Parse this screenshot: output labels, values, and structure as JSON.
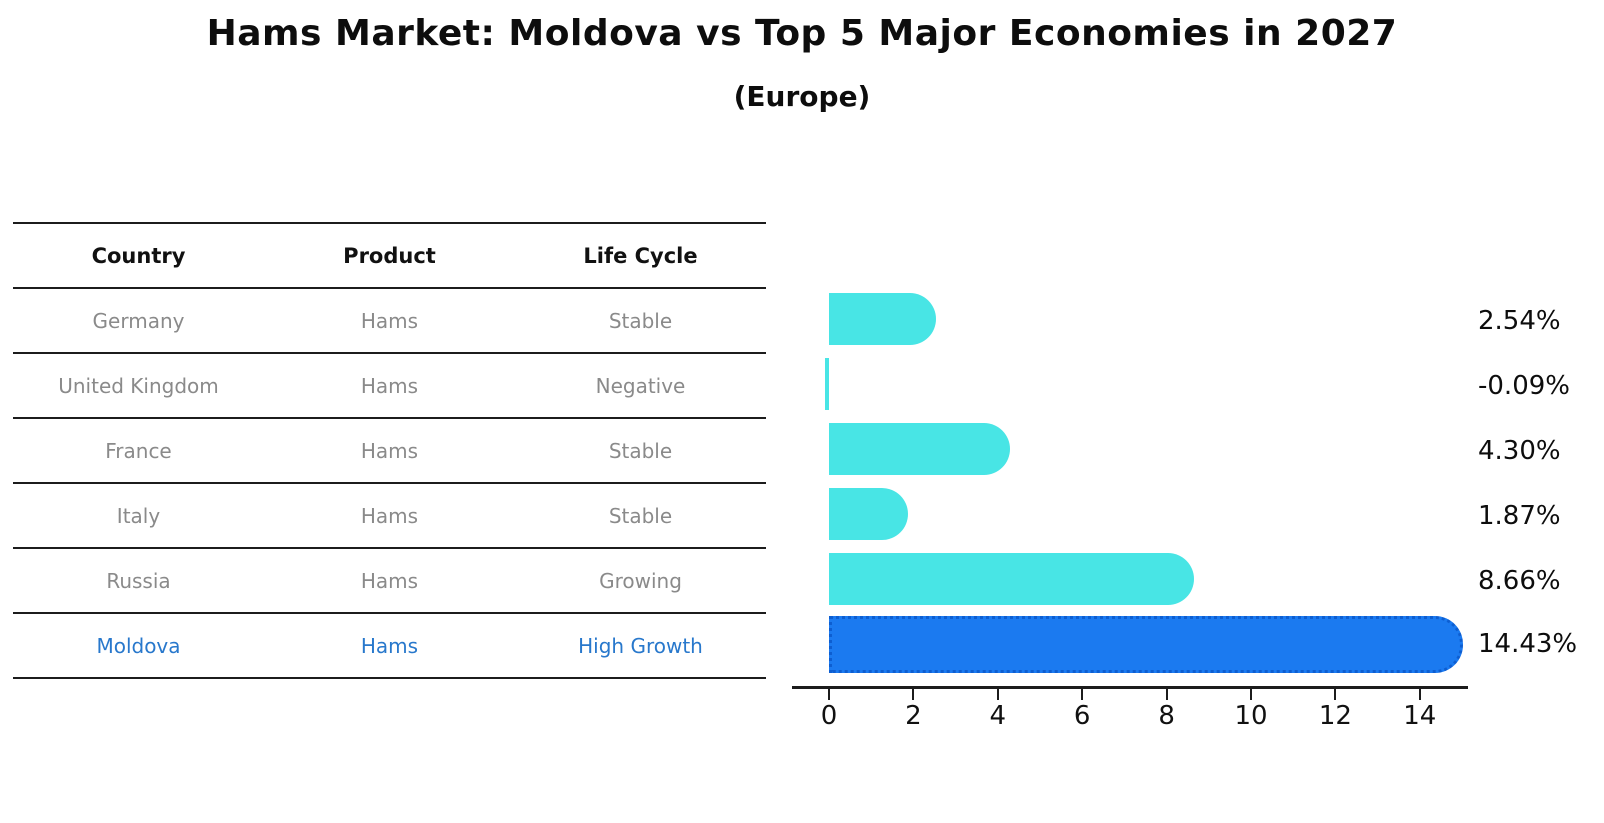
{
  "title": "Hams Market: Moldova vs Top 5 Major Economies in 2027",
  "subtitle": "(Europe)",
  "table": {
    "headers": [
      "Country",
      "Product",
      "Life Cycle"
    ],
    "rows": [
      {
        "country": "Germany",
        "product": "Hams",
        "life_cycle": "Stable",
        "highlight": false
      },
      {
        "country": "United Kingdom",
        "product": "Hams",
        "life_cycle": "Negative",
        "highlight": false
      },
      {
        "country": "France",
        "product": "Hams",
        "life_cycle": "Stable",
        "highlight": false
      },
      {
        "country": "Italy",
        "product": "Hams",
        "life_cycle": "Stable",
        "highlight": false
      },
      {
        "country": "Russia",
        "product": "Hams",
        "life_cycle": "Growing",
        "highlight": false
      },
      {
        "country": "Moldova",
        "product": "Hams",
        "life_cycle": "High Growth",
        "highlight": true
      }
    ]
  },
  "chart_data": {
    "type": "bar",
    "orientation": "horizontal",
    "title": "Hams Market: Moldova vs Top 5 Major Economies in 2027",
    "subtitle": "(Europe)",
    "categories": [
      "Germany",
      "United Kingdom",
      "France",
      "Italy",
      "Russia",
      "Moldova"
    ],
    "values": [
      2.54,
      -0.09,
      4.3,
      1.87,
      8.66,
      14.43
    ],
    "value_labels": [
      "2.54%",
      "-0.09%",
      "4.30%",
      "1.87%",
      "8.66%",
      "14.43%"
    ],
    "unit": "%",
    "xticks": [
      0,
      2,
      4,
      6,
      8,
      10,
      12,
      14
    ],
    "xlim": [
      -0.9,
      15.2
    ],
    "grid": false,
    "legend": false,
    "bar_color": "#48e5e5",
    "highlight_color": "#1b7af0",
    "highlight_border_color": "#0d5ed1",
    "highlight_index": 5
  },
  "colors": {
    "background": "#ffffff",
    "table_line": "#1c1c1c",
    "row_text": "#8a8a8a",
    "header_text": "#111111",
    "highlight_text": "#2878cc",
    "value_label_text": "#0d0d0d"
  }
}
